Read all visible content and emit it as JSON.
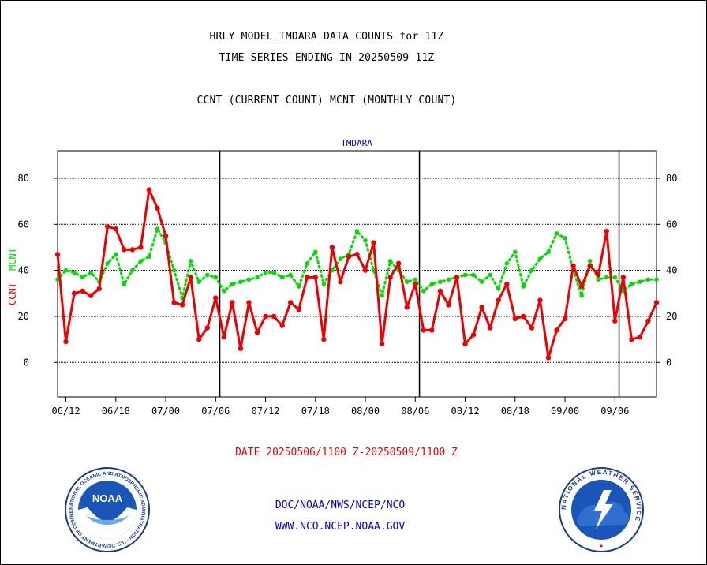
{
  "header": {
    "title_line1": "HRLY MODEL TMDARA DATA COUNTS for 11Z",
    "title_line2": "TIME SERIES ENDING IN 20250509 11Z",
    "title_line3": "CCNT (CURRENT COUNT) MCNT (MONTHLY COUNT)"
  },
  "footer": {
    "date_range": "DATE 20250506/1100 Z-20250509/1100 Z",
    "org_path": "DOC/NOAA/NWS/NCEP/NCO",
    "website": "WWW.NCO.NCEP.NOAA.GOV"
  },
  "logos": {
    "noaa_ring_text": "NATIONAL OCEANIC AND ATMOSPHERIC ADMINISTRATION · U.S. DEPARTMENT OF COMMERCE",
    "noaa_center": "NOAA",
    "nws_ring_text": "NATIONAL WEATHER SERVICE"
  },
  "colors": {
    "ccnt": "#ee0000",
    "mcnt": "#00dd00",
    "title_blue": "#0000cc",
    "grid": "#000000"
  },
  "chart_data": {
    "type": "line",
    "title": "TMDARA",
    "ylabel_left": "CCNT",
    "ylabel_right": "MCNT",
    "ylim": [
      -15,
      92
    ],
    "y_ticks": [
      0,
      20,
      40,
      60,
      80
    ],
    "x_ticks": [
      "06/12",
      "06/18",
      "07/00",
      "07/06",
      "07/12",
      "07/18",
      "08/00",
      "08/06",
      "08/12",
      "08/18",
      "09/00",
      "09/06"
    ],
    "day_boundaries_after_index": [
      19,
      43,
      67
    ],
    "grid": true,
    "series": [
      {
        "name": "CCNT",
        "style": "solid",
        "values": [
          47,
          9,
          30,
          31,
          29,
          32,
          59,
          58,
          49,
          49,
          50,
          75,
          67,
          55,
          26,
          25,
          37,
          10,
          15,
          28,
          11,
          26,
          6,
          26,
          13,
          20,
          20,
          16,
          26,
          23,
          37,
          37,
          10,
          50,
          35,
          46,
          47,
          40,
          52,
          8,
          37,
          43,
          24,
          34,
          14,
          14,
          31,
          25,
          37,
          8,
          12,
          24,
          15,
          27,
          34,
          19,
          20,
          15,
          27,
          2,
          14,
          19,
          42,
          33,
          42,
          38,
          57,
          18,
          37,
          10,
          11,
          18,
          26
        ]
      },
      {
        "name": "MCNT",
        "style": "dotted",
        "values": [
          36,
          40,
          39,
          37,
          39,
          35,
          43,
          47,
          34,
          40,
          44,
          46,
          58,
          52,
          40,
          28,
          44,
          35,
          38,
          37,
          31,
          34,
          35,
          36,
          37,
          39,
          39,
          37,
          38,
          33,
          43,
          48,
          34,
          40,
          45,
          47,
          57,
          53,
          40,
          29,
          44,
          40,
          35,
          36,
          31,
          34,
          35,
          36,
          37,
          38,
          38,
          35,
          38,
          32,
          43,
          48,
          33,
          40,
          45,
          48,
          56,
          54,
          40,
          29,
          44,
          36,
          37,
          37,
          31,
          34,
          35,
          36,
          36
        ]
      }
    ]
  }
}
